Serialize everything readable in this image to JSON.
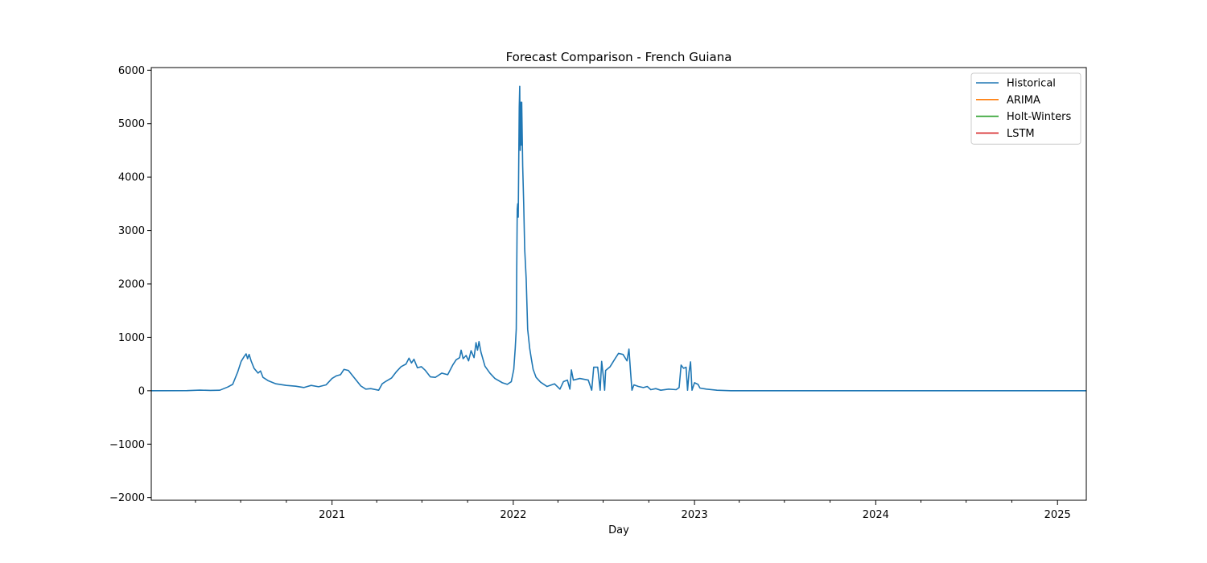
{
  "chart_data": {
    "type": "line",
    "title": "Forecast Comparison - French Guiana",
    "xlabel": "Day",
    "ylabel": "",
    "xlim": [
      "2020-01-03",
      "2025-02-28"
    ],
    "ylim": [
      -2050,
      6050
    ],
    "y_ticks": [
      -2000,
      -1000,
      0,
      1000,
      2000,
      3000,
      4000,
      5000,
      6000
    ],
    "x_ticks": [
      {
        "date": "2021-01-01",
        "label": "2021"
      },
      {
        "date": "2022-01-01",
        "label": "2022"
      },
      {
        "date": "2023-01-01",
        "label": "2023"
      },
      {
        "date": "2024-01-01",
        "label": "2024"
      },
      {
        "date": "2025-01-01",
        "label": "2025"
      }
    ],
    "x_minor_ticks": [
      "2020-04-01",
      "2020-07-01",
      "2020-10-01",
      "2021-04-01",
      "2021-07-01",
      "2021-10-01",
      "2022-04-01",
      "2022-07-01",
      "2022-10-01",
      "2023-04-01",
      "2023-07-01",
      "2023-10-01",
      "2024-04-01",
      "2024-07-01",
      "2024-10-01"
    ],
    "grid": false,
    "legend_position": "top-right",
    "series": [
      {
        "name": "Historical",
        "color": "#1f77b4",
        "points": [
          [
            "2020-01-03",
            0
          ],
          [
            "2020-03-15",
            2
          ],
          [
            "2020-04-10",
            12
          ],
          [
            "2020-05-01",
            6
          ],
          [
            "2020-05-20",
            10
          ],
          [
            "2020-06-05",
            70
          ],
          [
            "2020-06-15",
            120
          ],
          [
            "2020-06-25",
            350
          ],
          [
            "2020-07-02",
            550
          ],
          [
            "2020-07-08",
            640
          ],
          [
            "2020-07-12",
            690
          ],
          [
            "2020-07-15",
            600
          ],
          [
            "2020-07-18",
            680
          ],
          [
            "2020-07-22",
            560
          ],
          [
            "2020-07-28",
            420
          ],
          [
            "2020-08-05",
            330
          ],
          [
            "2020-08-10",
            370
          ],
          [
            "2020-08-15",
            250
          ],
          [
            "2020-08-25",
            190
          ],
          [
            "2020-09-10",
            130
          ],
          [
            "2020-10-01",
            100
          ],
          [
            "2020-10-20",
            85
          ],
          [
            "2020-11-05",
            60
          ],
          [
            "2020-11-20",
            100
          ],
          [
            "2020-12-05",
            75
          ],
          [
            "2020-12-20",
            110
          ],
          [
            "2021-01-01",
            230
          ],
          [
            "2021-01-10",
            280
          ],
          [
            "2021-01-18",
            300
          ],
          [
            "2021-01-25",
            400
          ],
          [
            "2021-02-03",
            380
          ],
          [
            "2021-02-15",
            240
          ],
          [
            "2021-02-28",
            90
          ],
          [
            "2021-03-10",
            30
          ],
          [
            "2021-03-20",
            40
          ],
          [
            "2021-04-05",
            10
          ],
          [
            "2021-04-12",
            130
          ],
          [
            "2021-04-20",
            180
          ],
          [
            "2021-05-01",
            240
          ],
          [
            "2021-05-10",
            350
          ],
          [
            "2021-05-20",
            450
          ],
          [
            "2021-05-30",
            500
          ],
          [
            "2021-06-05",
            610
          ],
          [
            "2021-06-10",
            520
          ],
          [
            "2021-06-15",
            590
          ],
          [
            "2021-06-22",
            430
          ],
          [
            "2021-06-30",
            450
          ],
          [
            "2021-07-08",
            380
          ],
          [
            "2021-07-18",
            260
          ],
          [
            "2021-07-28",
            250
          ],
          [
            "2021-08-10",
            330
          ],
          [
            "2021-08-22",
            300
          ],
          [
            "2021-09-01",
            480
          ],
          [
            "2021-09-08",
            580
          ],
          [
            "2021-09-15",
            620
          ],
          [
            "2021-09-18",
            760
          ],
          [
            "2021-09-22",
            600
          ],
          [
            "2021-09-28",
            660
          ],
          [
            "2021-10-03",
            560
          ],
          [
            "2021-10-08",
            750
          ],
          [
            "2021-10-14",
            620
          ],
          [
            "2021-10-18",
            900
          ],
          [
            "2021-10-21",
            760
          ],
          [
            "2021-10-24",
            920
          ],
          [
            "2021-10-28",
            720
          ],
          [
            "2021-11-05",
            460
          ],
          [
            "2021-11-15",
            330
          ],
          [
            "2021-11-25",
            230
          ],
          [
            "2021-12-10",
            150
          ],
          [
            "2021-12-20",
            120
          ],
          [
            "2021-12-28",
            170
          ],
          [
            "2022-01-02",
            400
          ],
          [
            "2022-01-05",
            800
          ],
          [
            "2022-01-07",
            1150
          ],
          [
            "2022-01-09",
            3400
          ],
          [
            "2022-01-10",
            3500
          ],
          [
            "2022-01-11",
            3250
          ],
          [
            "2022-01-13",
            5300
          ],
          [
            "2022-01-14",
            5700
          ],
          [
            "2022-01-15",
            4500
          ],
          [
            "2022-01-16",
            5400
          ],
          [
            "2022-01-17",
            4600
          ],
          [
            "2022-01-18",
            5400
          ],
          [
            "2022-01-20",
            4200
          ],
          [
            "2022-01-22",
            3500
          ],
          [
            "2022-01-24",
            2650
          ],
          [
            "2022-01-27",
            2100
          ],
          [
            "2022-01-30",
            1150
          ],
          [
            "2022-02-03",
            800
          ],
          [
            "2022-02-06",
            620
          ],
          [
            "2022-02-10",
            400
          ],
          [
            "2022-02-16",
            250
          ],
          [
            "2022-02-25",
            160
          ],
          [
            "2022-03-10",
            80
          ],
          [
            "2022-03-25",
            130
          ],
          [
            "2022-04-05",
            30
          ],
          [
            "2022-04-12",
            170
          ],
          [
            "2022-04-20",
            200
          ],
          [
            "2022-04-25",
            30
          ],
          [
            "2022-04-28",
            390
          ],
          [
            "2022-05-02",
            200
          ],
          [
            "2022-05-15",
            230
          ],
          [
            "2022-06-01",
            200
          ],
          [
            "2022-06-08",
            10
          ],
          [
            "2022-06-12",
            440
          ],
          [
            "2022-06-20",
            440
          ],
          [
            "2022-06-25",
            10
          ],
          [
            "2022-06-28",
            550
          ],
          [
            "2022-07-01",
            300
          ],
          [
            "2022-07-04",
            10
          ],
          [
            "2022-07-06",
            380
          ],
          [
            "2022-07-15",
            450
          ],
          [
            "2022-07-25",
            600
          ],
          [
            "2022-08-01",
            700
          ],
          [
            "2022-08-10",
            680
          ],
          [
            "2022-08-18",
            560
          ],
          [
            "2022-08-22",
            780
          ],
          [
            "2022-08-25",
            380
          ],
          [
            "2022-08-28",
            10
          ],
          [
            "2022-09-01",
            110
          ],
          [
            "2022-09-10",
            80
          ],
          [
            "2022-09-20",
            60
          ],
          [
            "2022-09-28",
            80
          ],
          [
            "2022-10-05",
            20
          ],
          [
            "2022-10-15",
            40
          ],
          [
            "2022-10-25",
            10
          ],
          [
            "2022-11-10",
            30
          ],
          [
            "2022-11-25",
            20
          ],
          [
            "2022-12-01",
            60
          ],
          [
            "2022-12-05",
            480
          ],
          [
            "2022-12-10",
            420
          ],
          [
            "2022-12-15",
            440
          ],
          [
            "2022-12-18",
            10
          ],
          [
            "2022-12-21",
            350
          ],
          [
            "2022-12-24",
            540
          ],
          [
            "2022-12-27",
            10
          ],
          [
            "2023-01-01",
            150
          ],
          [
            "2023-01-08",
            120
          ],
          [
            "2023-01-12",
            50
          ],
          [
            "2023-01-25",
            30
          ],
          [
            "2023-02-15",
            10
          ],
          [
            "2023-03-15",
            0
          ],
          [
            "2025-02-28",
            0
          ]
        ]
      },
      {
        "name": "ARIMA",
        "color": "#ff7f0e",
        "points": []
      },
      {
        "name": "Holt-Winters",
        "color": "#2ca02c",
        "points": []
      },
      {
        "name": "LSTM",
        "color": "#d62728",
        "points": []
      }
    ]
  }
}
